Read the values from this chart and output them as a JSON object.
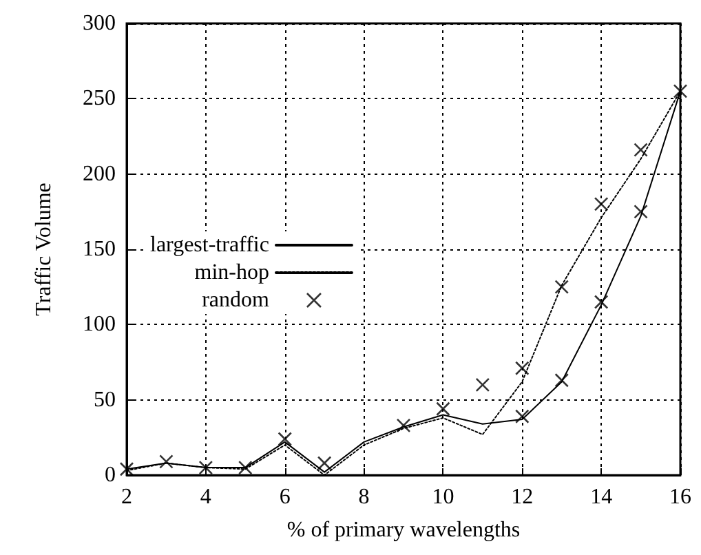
{
  "chart_data": {
    "type": "line",
    "xlabel": "% of primary wavelengths",
    "ylabel": "Traffic Volume",
    "xlim": [
      2,
      16
    ],
    "xticks": [
      2,
      4,
      6,
      8,
      10,
      12,
      14,
      16
    ],
    "ylim": [
      0,
      300
    ],
    "yticks": [
      0,
      50,
      100,
      150,
      200,
      250,
      300
    ],
    "grid": true,
    "legend": "left",
    "series": [
      {
        "name": "largest-traffic",
        "color": "#000000",
        "line_style": "solid",
        "x": [
          2,
          3,
          4,
          5,
          6,
          7,
          8,
          9,
          10,
          11,
          12,
          13,
          14,
          15,
          16
        ],
        "values": [
          4,
          8,
          5,
          5,
          22,
          2,
          22,
          32,
          40,
          34,
          37,
          62,
          113,
          172,
          255
        ]
      },
      {
        "name": "min-hop",
        "color": "#000000",
        "line_style": "dotted",
        "x": [
          2,
          3,
          4,
          5,
          6,
          7,
          8,
          9,
          10,
          11,
          12,
          13,
          14,
          15,
          16
        ],
        "values": [
          3,
          8,
          5,
          4,
          20,
          0,
          20,
          31,
          38,
          27,
          62,
          126,
          171,
          210,
          255
        ]
      },
      {
        "name": "random",
        "type": "scatter",
        "color": "#000000",
        "marker": "cross",
        "x": [
          2,
          3,
          4,
          5,
          6,
          7,
          9,
          10,
          11,
          12,
          12,
          13,
          13,
          14,
          14,
          15,
          15,
          16
        ],
        "values": [
          4,
          9,
          5,
          5,
          24,
          8,
          33,
          44,
          60,
          71,
          39,
          125,
          63,
          180,
          115,
          216,
          175,
          255
        ]
      }
    ]
  }
}
